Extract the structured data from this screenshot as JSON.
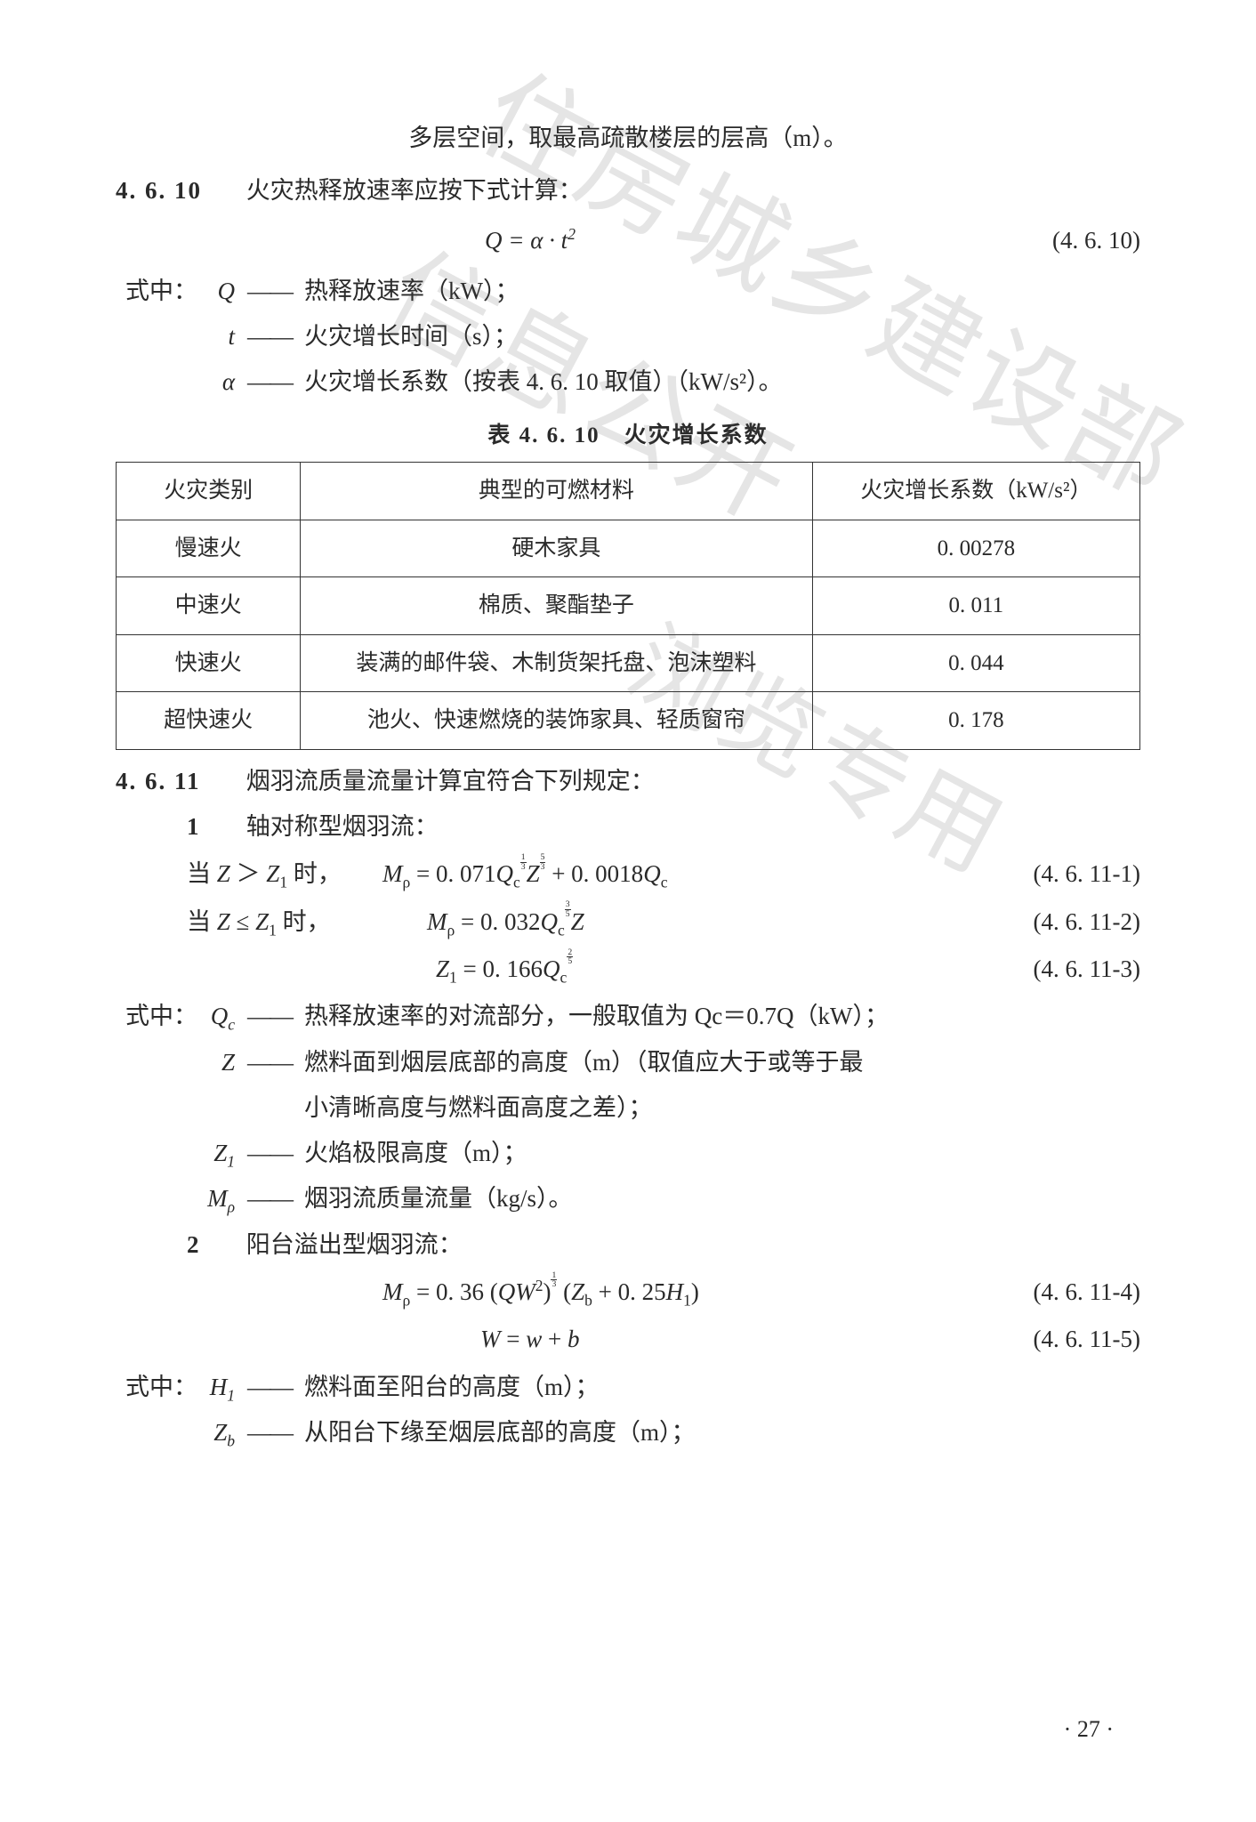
{
  "page_number": "· 27 ·",
  "watermark1": "住房城乡建设部信息公开",
  "watermark2": "浏览专用",
  "continued_text": "多层空间，取最高疏散楼层的层高（m）。",
  "s4610": {
    "num": "4. 6. 10",
    "title": "火灾热释放速率应按下式计算：",
    "eq": "Q = α · t",
    "eq_exp": "2",
    "eq_num": "(4. 6. 10)",
    "def_prefix": "式中：",
    "defs": [
      {
        "var": "Q",
        "dash": "——",
        "text": "热释放速率（kW）；"
      },
      {
        "var": "t",
        "dash": "——",
        "text": "火灾增长时间（s）；"
      },
      {
        "var": "α",
        "dash": "——",
        "text": "火灾增长系数（按表 4. 6. 10 取值）（kW/s²）。"
      }
    ],
    "table_title": "表 4. 6. 10　火灾增长系数",
    "table": {
      "headers": [
        "火灾类别",
        "典型的可燃材料",
        "火灾增长系数（kW/s²）"
      ],
      "col_widths": [
        "18%",
        "50%",
        "32%"
      ],
      "rows": [
        [
          "慢速火",
          "硬木家具",
          "0. 00278"
        ],
        [
          "中速火",
          "棉质、聚酯垫子",
          "0. 011"
        ],
        [
          "快速火",
          "装满的邮件袋、木制货架托盘、泡沫塑料",
          "0. 044"
        ],
        [
          "超快速火",
          "池火、快速燃烧的装饰家具、轻质窗帘",
          "0. 178"
        ]
      ]
    }
  },
  "s4611": {
    "num": "4. 6. 11",
    "title": "烟羽流质量流量计算宜符合下列规定：",
    "item1": {
      "num": "1",
      "label": "轴对称型烟羽流："
    },
    "eq1": {
      "lead_a": "当 ",
      "lead_var1": "Z",
      "lead_mid": " ＞ ",
      "lead_var2": "Z",
      "lead_sub": "1",
      "lead_b": " 时，",
      "body_pre": "M",
      "body_sub": "ρ",
      "body_eq": " = 0. 071",
      "qc": "Q",
      "qc_sub": "c",
      "text": "Mρ = 0.071 Qc^(1/3) Z^(5/3) + 0.0018 Qc",
      "ref": "(4. 6. 11-1)"
    },
    "eq2": {
      "lead_a": "当 ",
      "lead_var1": "Z",
      "lead_mid": " ≤ ",
      "lead_var2": "Z",
      "lead_sub": "1",
      "lead_b": " 时，",
      "text": "Mρ = 0.032 Qc^(3/5) Z",
      "ref": "(4. 6. 11-2)"
    },
    "eq3": {
      "text": "Z1 = 0.166 Qc^(2/5)",
      "ref": "(4. 6. 11-3)"
    },
    "def_prefix": "式中：",
    "defs1": [
      {
        "var": "Q",
        "sub": "c",
        "dash": "——",
        "text": "热释放速率的对流部分，一般取值为 Qc＝0.7Q（kW）；"
      },
      {
        "var": "Z",
        "sub": "",
        "dash": "——",
        "text": "燃料面到烟层底部的高度（m）（取值应大于或等于最",
        "text2": "小清晰高度与燃料面高度之差）；"
      },
      {
        "var": "Z",
        "sub": "1",
        "dash": "——",
        "text": "火焰极限高度（m）；"
      },
      {
        "var": "M",
        "sub": "ρ",
        "dash": "——",
        "text": "烟羽流质量流量（kg/s）。"
      }
    ],
    "item2": {
      "num": "2",
      "label": "阳台溢出型烟羽流："
    },
    "eq4": {
      "text": "Mρ = 0.36 (QW²)^(1/3) (Zb + 0.25H1)",
      "ref": "(4. 6. 11-4)"
    },
    "eq5": {
      "text": "W = w + b",
      "ref": "(4. 6. 11-5)"
    },
    "defs2": [
      {
        "var": "H",
        "sub": "1",
        "dash": "——",
        "text": "燃料面至阳台的高度（m）；"
      },
      {
        "var": "Z",
        "sub": "b",
        "dash": "——",
        "text": "从阳台下缘至烟层底部的高度（m）；"
      }
    ]
  }
}
